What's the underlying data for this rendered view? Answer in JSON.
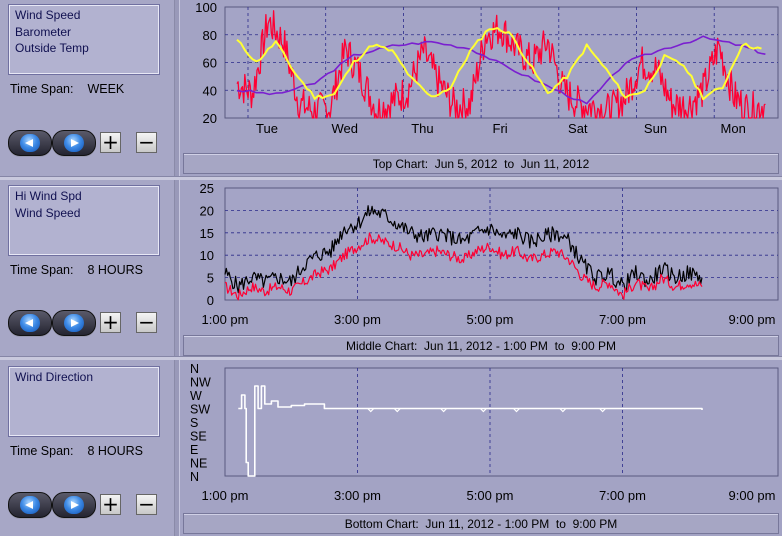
{
  "panels": [
    {
      "id": "top",
      "series_list": [
        "Wind Speed",
        "Barometer",
        "Outside Temp"
      ],
      "time_span_label": "Time Span:",
      "time_span_value": "WEEK",
      "caption": "Top Chart:  Jun 5, 2012  to  Jun 11, 2012"
    },
    {
      "id": "middle",
      "series_list": [
        "Hi Wind Spd",
        "Wind Speed"
      ],
      "time_span_label": "Time Span:",
      "time_span_value": "8 HOURS",
      "caption": "Middle Chart:  Jun 11, 2012 - 1:00 PM  to  9:00 PM"
    },
    {
      "id": "bottom",
      "series_list": [
        "Wind Direction"
      ],
      "time_span_label": "Time Span:",
      "time_span_value": "8 HOURS",
      "caption": "Bottom Chart:  Jun 11, 2012 - 1:00 PM  to  9:00 PM"
    }
  ],
  "controls": {
    "back_icon": "left-arrow-icon",
    "forward_icon": "right-arrow-icon",
    "zoom_in_label": "+",
    "zoom_out_label": "−"
  },
  "colors": {
    "wind_speed_week": "#ff0033",
    "barometer": "#7a1fd0",
    "outside_temp": "#ffff33",
    "hi_wind": "#000000",
    "wind_speed_8h": "#ff0033",
    "wind_direction": "#ffffff",
    "grid": "#2a2a8a"
  },
  "chart_data": [
    {
      "type": "line",
      "name": "top",
      "y_ticks": [
        "100",
        "80",
        "60",
        "40",
        "20"
      ],
      "ylim": [
        20,
        100
      ],
      "x_ticks": [
        "Tue",
        "Wed",
        "Thu",
        "Fri",
        "Sat",
        "Sun",
        "Mon"
      ],
      "series": [
        {
          "name": "Wind Speed",
          "x": [
            0,
            0.2,
            0.4,
            0.6,
            0.8,
            1.0,
            1.2,
            1.4,
            1.6,
            1.8,
            2.0,
            2.2,
            2.4,
            2.6,
            2.8,
            3.0,
            3.2,
            3.4,
            3.6,
            3.8,
            4.0,
            4.2,
            4.4,
            4.6,
            4.8,
            5.0,
            5.2,
            5.4,
            5.6,
            5.8,
            6.0,
            6.2,
            6.4,
            6.6,
            6.8
          ],
          "values": [
            45,
            38,
            90,
            75,
            30,
            25,
            28,
            70,
            50,
            25,
            32,
            40,
            68,
            45,
            28,
            30,
            80,
            85,
            70,
            60,
            75,
            40,
            30,
            28,
            25,
            35,
            60,
            55,
            30,
            28,
            40,
            72,
            35,
            25,
            30
          ]
        },
        {
          "name": "Barometer",
          "x": [
            0,
            0.5,
            1.0,
            1.5,
            2.0,
            2.5,
            3.0,
            3.5,
            4.0,
            4.5,
            5.0,
            5.5,
            6.0,
            6.5,
            6.8
          ],
          "values": [
            40,
            37,
            45,
            65,
            72,
            75,
            70,
            56,
            43,
            30,
            60,
            70,
            78,
            72,
            66
          ]
        },
        {
          "name": "Outside Temp",
          "x": [
            0,
            0.25,
            0.5,
            0.75,
            1.0,
            1.25,
            1.5,
            1.75,
            2.0,
            2.25,
            2.5,
            2.75,
            3.0,
            3.25,
            3.5,
            3.75,
            4.0,
            4.25,
            4.5,
            4.75,
            5.0,
            5.25,
            5.5,
            5.75,
            6.0,
            6.25,
            6.5,
            6.75
          ],
          "values": [
            76,
            60,
            75,
            52,
            35,
            37,
            60,
            73,
            68,
            48,
            35,
            42,
            68,
            85,
            82,
            60,
            38,
            50,
            72,
            55,
            35,
            40,
            64,
            58,
            35,
            42,
            73,
            70
          ]
        }
      ]
    },
    {
      "type": "line",
      "name": "middle",
      "y_ticks": [
        "25",
        "20",
        "15",
        "10",
        "5",
        "0"
      ],
      "ylim": [
        0,
        25
      ],
      "x_ticks": [
        "1:00 pm",
        "3:00 pm",
        "5:00 pm",
        "7:00 pm",
        "9:00 pm"
      ],
      "xlim": [
        1,
        9
      ],
      "series": [
        {
          "name": "Hi Wind Spd",
          "x": [
            1.0,
            1.2,
            1.4,
            1.6,
            1.8,
            2.0,
            2.2,
            2.4,
            2.6,
            2.8,
            3.0,
            3.2,
            3.4,
            3.6,
            3.8,
            4.0,
            4.2,
            4.4,
            4.6,
            4.8,
            5.0,
            5.2,
            5.4,
            5.6,
            5.8,
            6.0,
            6.2,
            6.4,
            6.6,
            6.8,
            7.0,
            7.2,
            7.4,
            7.6,
            7.8,
            8.0,
            8.2
          ],
          "values": [
            6,
            3,
            5,
            4,
            5,
            4,
            8,
            10,
            11,
            16,
            17,
            20,
            19,
            17,
            15,
            14,
            15,
            14,
            13,
            15,
            16,
            14,
            15,
            13,
            14,
            15,
            13,
            8,
            5,
            6,
            3,
            6,
            4,
            7,
            5,
            6,
            5
          ]
        },
        {
          "name": "Wind Speed",
          "x": [
            1.0,
            1.2,
            1.4,
            1.6,
            1.8,
            2.0,
            2.2,
            2.4,
            2.6,
            2.8,
            3.0,
            3.2,
            3.4,
            3.6,
            3.8,
            4.0,
            4.2,
            4.4,
            4.6,
            4.8,
            5.0,
            5.2,
            5.4,
            5.6,
            5.8,
            6.0,
            6.2,
            6.4,
            6.6,
            6.8,
            7.0,
            7.2,
            7.4,
            7.6,
            7.8,
            8.0,
            8.2
          ],
          "values": [
            3,
            1,
            3,
            2,
            3,
            2,
            4,
            6,
            7,
            10,
            12,
            14,
            13,
            12,
            10,
            10,
            11,
            10,
            9,
            11,
            12,
            10,
            11,
            9,
            10,
            11,
            9,
            5,
            3,
            4,
            1,
            4,
            2,
            5,
            3,
            4,
            3
          ]
        }
      ]
    },
    {
      "type": "line",
      "name": "bottom",
      "y_ticks": [
        "N",
        "NW",
        "W",
        "SW",
        "S",
        "SE",
        "E",
        "NE",
        "N"
      ],
      "x_ticks": [
        "1:00 pm",
        "3:00 pm",
        "5:00 pm",
        "7:00 pm",
        "9:00 pm"
      ],
      "xlim": [
        1,
        9
      ],
      "series": [
        {
          "name": "Wind Direction",
          "x": [
            1.2,
            1.25,
            1.3,
            1.32,
            1.35,
            1.42,
            1.45,
            1.5,
            1.55,
            1.6,
            1.7,
            1.8,
            2.0,
            2.2,
            2.5,
            3.0,
            3.5,
            4.0,
            4.5,
            5.0,
            5.5,
            6.0,
            6.5,
            7.0,
            7.5,
            8.0,
            8.2
          ],
          "values": [
            225,
            270,
            225,
            45,
            0,
            0,
            300,
            225,
            300,
            240,
            250,
            230,
            235,
            240,
            225,
            225,
            225,
            225,
            225,
            225,
            225,
            225,
            225,
            225,
            225,
            225,
            220
          ]
        }
      ]
    }
  ]
}
